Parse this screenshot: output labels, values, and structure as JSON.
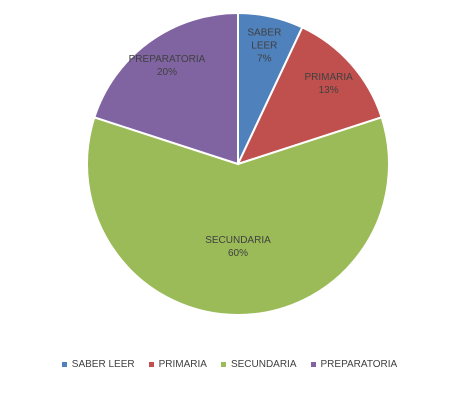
{
  "chart_data": {
    "type": "pie",
    "categories": [
      "SABER LEER",
      "PRIMARIA",
      "SECUNDARIA",
      "PREPARATORIA"
    ],
    "values": [
      7,
      13,
      60,
      20
    ],
    "value_labels": [
      "7%",
      "13%",
      "60%",
      "20%"
    ],
    "colors": [
      "#4f81bd",
      "#c0504d",
      "#9bbb59",
      "#8064a2"
    ],
    "legend": "bottom"
  }
}
